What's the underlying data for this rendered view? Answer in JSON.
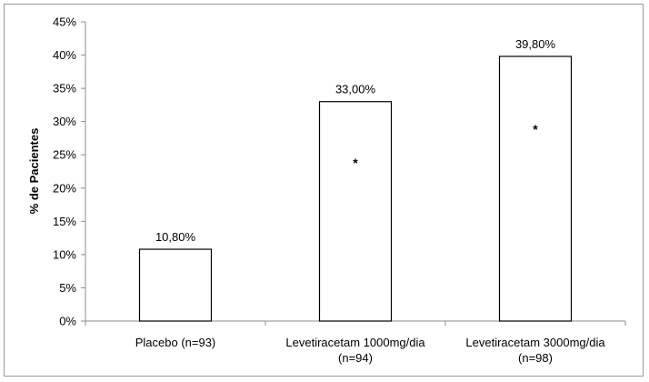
{
  "chart_data": {
    "type": "bar",
    "categories": [
      [
        "Placebo (n=93)"
      ],
      [
        "Levetiracetam 1000mg/dia",
        "(n=94)"
      ],
      [
        "Levetiracetam 3000mg/dia",
        "(n=98)"
      ]
    ],
    "values": [
      10.8,
      33.0,
      39.8
    ],
    "data_labels": [
      "10,80%",
      "33,00%",
      "39,80%"
    ],
    "annotations": [
      "",
      "*",
      "*"
    ],
    "title": "",
    "xlabel": "",
    "ylabel": "% de Pacientes",
    "ylim": [
      0,
      45
    ],
    "yticks": [
      "0%",
      "5%",
      "10%",
      "15%",
      "20%",
      "25%",
      "30%",
      "35%",
      "40%",
      "45%"
    ],
    "grid": false,
    "legend": "none",
    "bar_fill": "#ffffff",
    "bar_stroke": "#000000",
    "axis_color": "#8c8c8c"
  }
}
